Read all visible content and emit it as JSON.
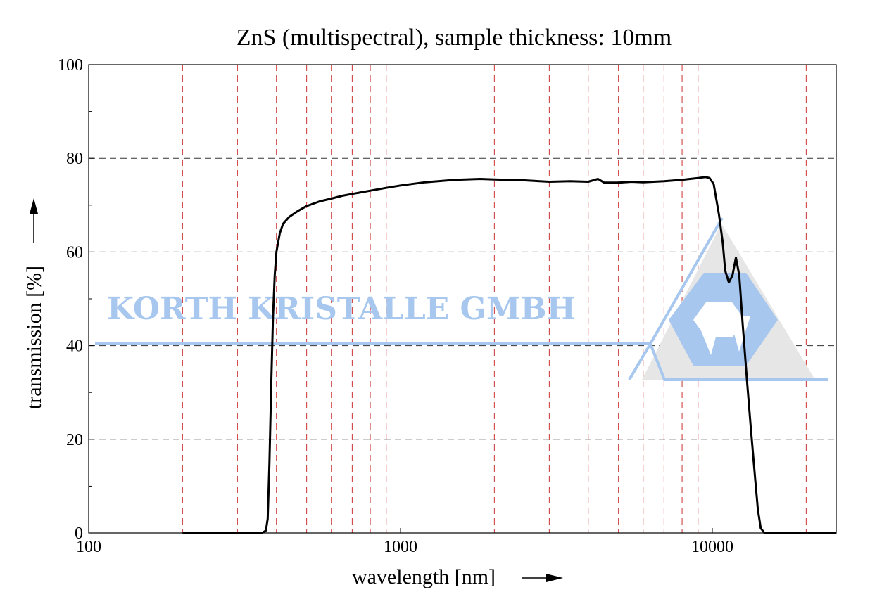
{
  "chart_data": {
    "type": "line",
    "title": "ZnS (multispectral), sample thickness: 10mm",
    "xlabel": "wavelength [nm]",
    "ylabel": "transmission [%]",
    "x_scale": "log",
    "xlim": [
      100,
      25000
    ],
    "ylim": [
      0,
      100
    ],
    "x_ticks": [
      100,
      1000,
      10000
    ],
    "x_tick_labels": [
      "100",
      "1000",
      "10000"
    ],
    "y_ticks": [
      0,
      20,
      40,
      60,
      80,
      100
    ],
    "y_tick_labels": [
      "0",
      "20",
      "40",
      "60",
      "80",
      "100"
    ],
    "x_gridlines": [
      200,
      300,
      400,
      500,
      600,
      700,
      800,
      900,
      2000,
      3000,
      4000,
      5000,
      6000,
      7000,
      8000,
      9000,
      20000
    ],
    "y_gridlines": [
      20,
      40,
      60,
      80
    ],
    "grid": true,
    "colors": {
      "line": "#000000",
      "x_grid": "#cc3333",
      "y_grid": "#333333",
      "watermark": "#a7c7ee",
      "watermark_gray": "#e6e6e6"
    },
    "series": [
      {
        "values": [
          [
            200,
            0
          ],
          [
            300,
            0
          ],
          [
            360,
            0
          ],
          [
            370,
            0.5
          ],
          [
            375,
            3
          ],
          [
            380,
            15
          ],
          [
            385,
            32
          ],
          [
            390,
            46
          ],
          [
            395,
            55
          ],
          [
            400,
            60
          ],
          [
            410,
            64
          ],
          [
            420,
            66
          ],
          [
            440,
            67.5
          ],
          [
            470,
            68.8
          ],
          [
            500,
            69.8
          ],
          [
            550,
            70.8
          ],
          [
            600,
            71.4
          ],
          [
            650,
            72
          ],
          [
            700,
            72.4
          ],
          [
            800,
            73.1
          ],
          [
            900,
            73.7
          ],
          [
            1000,
            74.2
          ],
          [
            1200,
            74.9
          ],
          [
            1500,
            75.4
          ],
          [
            1800,
            75.6
          ],
          [
            2000,
            75.5
          ],
          [
            2500,
            75.3
          ],
          [
            3000,
            75.0
          ],
          [
            3500,
            75.1
          ],
          [
            4000,
            75.0
          ],
          [
            4300,
            75.6
          ],
          [
            4500,
            74.8
          ],
          [
            5000,
            74.8
          ],
          [
            5500,
            75.0
          ],
          [
            6000,
            74.9
          ],
          [
            7000,
            75.1
          ],
          [
            8000,
            75.4
          ],
          [
            9000,
            75.8
          ],
          [
            9500,
            76.0
          ],
          [
            9800,
            75.8
          ],
          [
            10100,
            74.5
          ],
          [
            10500,
            68
          ],
          [
            10800,
            62
          ],
          [
            11000,
            56
          ],
          [
            11300,
            53.5
          ],
          [
            11600,
            55
          ],
          [
            11900,
            58.8
          ],
          [
            12200,
            55
          ],
          [
            12500,
            45
          ],
          [
            12900,
            33
          ],
          [
            13300,
            22
          ],
          [
            13700,
            12
          ],
          [
            14000,
            5
          ],
          [
            14300,
            1
          ],
          [
            14700,
            0
          ],
          [
            20000,
            0
          ],
          [
            25000,
            0
          ]
        ]
      }
    ],
    "watermark_text": "KORTH KRISTALLE GMBH"
  }
}
